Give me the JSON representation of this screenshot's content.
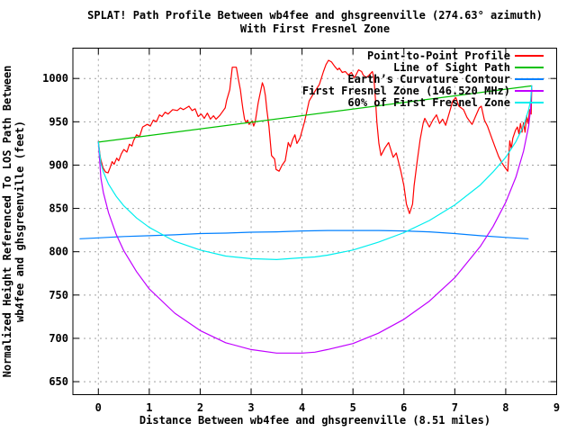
{
  "colors": {
    "background": "#ffffff",
    "border": "#000000",
    "grid": "#a0a0a0",
    "text": "#000000",
    "profile_red": "#ff0000",
    "los_green": "#00c000",
    "curvature_blue": "#0080ff",
    "fresnel_magenta": "#c000ff",
    "fresnel60_cyan": "#00eeee"
  },
  "chart_data": {
    "type": "line",
    "title": "SPLAT! Path Profile Between wb4fee and ghsgreenville (274.63° azimuth)",
    "subtitle": "With First Fresnel Zone",
    "xlabel": "Distance Between wb4fee and ghsgreenville (8.51 miles)",
    "ylabel_line1": "Normalized Height Referenced To LOS Path Between",
    "ylabel_line2": "wb4fee and ghsgreenville (feet)",
    "xlim": [
      -0.5,
      9.0
    ],
    "ylim": [
      635,
      1035
    ],
    "xticks": [
      0,
      1,
      2,
      3,
      4,
      5,
      6,
      7,
      8,
      9
    ],
    "yticks": [
      650,
      700,
      750,
      800,
      850,
      900,
      950,
      1000
    ],
    "grid": true,
    "legend_position": "top-right-inside",
    "path_length_miles": 8.51,
    "frequency_mhz": "146.520",
    "azimuth_deg": "274.63",
    "series": [
      {
        "id": "point-to-point-profile",
        "name": "Point-to-Point Profile",
        "color": "#ff0000",
        "points": [
          [
            0,
            927
          ],
          [
            0.04,
            908
          ],
          [
            0.09,
            897
          ],
          [
            0.14,
            892
          ],
          [
            0.19,
            891
          ],
          [
            0.23,
            897
          ],
          [
            0.27,
            904
          ],
          [
            0.31,
            901
          ],
          [
            0.36,
            908
          ],
          [
            0.4,
            905
          ],
          [
            0.45,
            913
          ],
          [
            0.5,
            918
          ],
          [
            0.56,
            915
          ],
          [
            0.61,
            924
          ],
          [
            0.66,
            922
          ],
          [
            0.69,
            928
          ],
          [
            0.75,
            935
          ],
          [
            0.81,
            933
          ],
          [
            0.87,
            944
          ],
          [
            0.96,
            947
          ],
          [
            1.02,
            945
          ],
          [
            1.08,
            952
          ],
          [
            1.14,
            950
          ],
          [
            1.2,
            958
          ],
          [
            1.25,
            956
          ],
          [
            1.31,
            961
          ],
          [
            1.37,
            959
          ],
          [
            1.46,
            964
          ],
          [
            1.55,
            963
          ],
          [
            1.61,
            966
          ],
          [
            1.67,
            964
          ],
          [
            1.78,
            968
          ],
          [
            1.84,
            963
          ],
          [
            1.9,
            965
          ],
          [
            1.96,
            956
          ],
          [
            2.02,
            959
          ],
          [
            2.08,
            954
          ],
          [
            2.14,
            960
          ],
          [
            2.2,
            953
          ],
          [
            2.26,
            957
          ],
          [
            2.31,
            953
          ],
          [
            2.38,
            957
          ],
          [
            2.43,
            961
          ],
          [
            2.49,
            966
          ],
          [
            2.52,
            975
          ],
          [
            2.58,
            987
          ],
          [
            2.63,
            1013
          ],
          [
            2.71,
            1013
          ],
          [
            2.75,
            999
          ],
          [
            2.79,
            987
          ],
          [
            2.82,
            973
          ],
          [
            2.84,
            964
          ],
          [
            2.87,
            953
          ],
          [
            2.9,
            949
          ],
          [
            2.93,
            952
          ],
          [
            2.96,
            947
          ],
          [
            3.02,
            951
          ],
          [
            3.05,
            945
          ],
          [
            3.08,
            950
          ],
          [
            3.14,
            972
          ],
          [
            3.22,
            995
          ],
          [
            3.25,
            990
          ],
          [
            3.28,
            980
          ],
          [
            3.31,
            963
          ],
          [
            3.35,
            945
          ],
          [
            3.4,
            911
          ],
          [
            3.46,
            907
          ],
          [
            3.49,
            895
          ],
          [
            3.55,
            893
          ],
          [
            3.61,
            900
          ],
          [
            3.67,
            905
          ],
          [
            3.73,
            926
          ],
          [
            3.77,
            921
          ],
          [
            3.82,
            930
          ],
          [
            3.86,
            935
          ],
          [
            3.9,
            925
          ],
          [
            3.96,
            931
          ],
          [
            4.05,
            950
          ],
          [
            4.14,
            974
          ],
          [
            4.24,
            984
          ],
          [
            4.34,
            993
          ],
          [
            4.42,
            1008
          ],
          [
            4.47,
            1016
          ],
          [
            4.52,
            1021
          ],
          [
            4.58,
            1019
          ],
          [
            4.64,
            1014
          ],
          [
            4.7,
            1010
          ],
          [
            4.73,
            1012
          ],
          [
            4.79,
            1007
          ],
          [
            4.85,
            1008
          ],
          [
            4.91,
            1004
          ],
          [
            4.97,
            1007
          ],
          [
            5.02,
            1001
          ],
          [
            5.05,
            1003
          ],
          [
            5.11,
            1010
          ],
          [
            5.17,
            1008
          ],
          [
            5.2,
            1004
          ],
          [
            5.26,
            1001
          ],
          [
            5.32,
            1004
          ],
          [
            5.38,
            1008
          ],
          [
            5.41,
            1001
          ],
          [
            5.44,
            977
          ],
          [
            5.47,
            949
          ],
          [
            5.51,
            925
          ],
          [
            5.55,
            911
          ],
          [
            5.63,
            920
          ],
          [
            5.7,
            926
          ],
          [
            5.79,
            909
          ],
          [
            5.85,
            914
          ],
          [
            5.94,
            893
          ],
          [
            6,
            876
          ],
          [
            6.05,
            855
          ],
          [
            6.11,
            844
          ],
          [
            6.17,
            855
          ],
          [
            6.2,
            876
          ],
          [
            6.26,
            904
          ],
          [
            6.32,
            930
          ],
          [
            6.38,
            949
          ],
          [
            6.41,
            954
          ],
          [
            6.5,
            944
          ],
          [
            6.57,
            952
          ],
          [
            6.64,
            958
          ],
          [
            6.7,
            948
          ],
          [
            6.76,
            953
          ],
          [
            6.82,
            946
          ],
          [
            6.9,
            962
          ],
          [
            6.96,
            974
          ],
          [
            7.02,
            978
          ],
          [
            7.08,
            968
          ],
          [
            7.17,
            964
          ],
          [
            7.24,
            955
          ],
          [
            7.3,
            950
          ],
          [
            7.34,
            947
          ],
          [
            7.42,
            958
          ],
          [
            7.48,
            966
          ],
          [
            7.52,
            968
          ],
          [
            7.58,
            952
          ],
          [
            7.64,
            945
          ],
          [
            7.72,
            932
          ],
          [
            7.79,
            921
          ],
          [
            7.86,
            910
          ],
          [
            7.93,
            902
          ],
          [
            8,
            896
          ],
          [
            8.04,
            893
          ],
          [
            8.08,
            928
          ],
          [
            8.11,
            919
          ],
          [
            8.14,
            931
          ],
          [
            8.19,
            940
          ],
          [
            8.23,
            944
          ],
          [
            8.26,
            936
          ],
          [
            8.29,
            948
          ],
          [
            8.32,
            938
          ],
          [
            8.35,
            949
          ],
          [
            8.38,
            938
          ],
          [
            8.41,
            957
          ],
          [
            8.44,
            948
          ],
          [
            8.47,
            964
          ],
          [
            8.5,
            959
          ],
          [
            8.51,
            988
          ]
        ]
      },
      {
        "id": "line-of-sight-path",
        "name": "Line of Sight Path",
        "color": "#00c000",
        "points": [
          [
            0,
            926.5
          ],
          [
            8.51,
            991.5
          ]
        ]
      },
      {
        "id": "earths-curvature-contour",
        "name": "Earth’s Curvature Contour",
        "color": "#0080ff",
        "points": [
          [
            -0.36,
            815
          ],
          [
            0,
            816
          ],
          [
            0.5,
            817.5
          ],
          [
            1,
            818.5
          ],
          [
            1.5,
            819.5
          ],
          [
            2,
            821
          ],
          [
            2.5,
            821.5
          ],
          [
            3,
            822.5
          ],
          [
            3.5,
            823
          ],
          [
            4,
            824
          ],
          [
            4.5,
            824.5
          ],
          [
            5,
            824.5
          ],
          [
            5.5,
            824.5
          ],
          [
            6,
            824
          ],
          [
            6.5,
            823
          ],
          [
            7,
            821
          ],
          [
            7.5,
            818.5
          ],
          [
            8,
            816.5
          ],
          [
            8.44,
            815
          ]
        ]
      },
      {
        "id": "first-fresnel-zone",
        "name": "First Fresnel Zone (146.520 MHz)",
        "color": "#c000ff",
        "points": [
          [
            0,
            926.5
          ],
          [
            0.05,
            885
          ],
          [
            0.1,
            868
          ],
          [
            0.2,
            845
          ],
          [
            0.35,
            820
          ],
          [
            0.5,
            801
          ],
          [
            0.75,
            777
          ],
          [
            1,
            757
          ],
          [
            1.5,
            729
          ],
          [
            2,
            709
          ],
          [
            2.5,
            695
          ],
          [
            3,
            687
          ],
          [
            3.5,
            683
          ],
          [
            4,
            683
          ],
          [
            4.25,
            684
          ],
          [
            4.5,
            687
          ],
          [
            5,
            694
          ],
          [
            5.5,
            706
          ],
          [
            6,
            722
          ],
          [
            6.5,
            743
          ],
          [
            7,
            770
          ],
          [
            7.5,
            806
          ],
          [
            7.75,
            829
          ],
          [
            8,
            857
          ],
          [
            8.2,
            886
          ],
          [
            8.35,
            916
          ],
          [
            8.45,
            945
          ],
          [
            8.49,
            965
          ],
          [
            8.51,
            991.5
          ]
        ]
      },
      {
        "id": "sixty-percent-first-fresnel-zone",
        "name": "60% of First Fresnel Zone",
        "color": "#00eeee",
        "points": [
          [
            0,
            926.5
          ],
          [
            0.05,
            902
          ],
          [
            0.1,
            892
          ],
          [
            0.2,
            878
          ],
          [
            0.35,
            864
          ],
          [
            0.5,
            853
          ],
          [
            0.75,
            839
          ],
          [
            1,
            828
          ],
          [
            1.5,
            812
          ],
          [
            2,
            802
          ],
          [
            2.5,
            795
          ],
          [
            3,
            792
          ],
          [
            3.5,
            791
          ],
          [
            4,
            793
          ],
          [
            4.25,
            794
          ],
          [
            4.5,
            796
          ],
          [
            5,
            802
          ],
          [
            5.5,
            811
          ],
          [
            6,
            822
          ],
          [
            6.5,
            836
          ],
          [
            7,
            854
          ],
          [
            7.5,
            877
          ],
          [
            7.75,
            892
          ],
          [
            8,
            909
          ],
          [
            8.2,
            927
          ],
          [
            8.35,
            945
          ],
          [
            8.45,
            964
          ],
          [
            8.49,
            975
          ],
          [
            8.51,
            991.5
          ]
        ]
      }
    ]
  }
}
